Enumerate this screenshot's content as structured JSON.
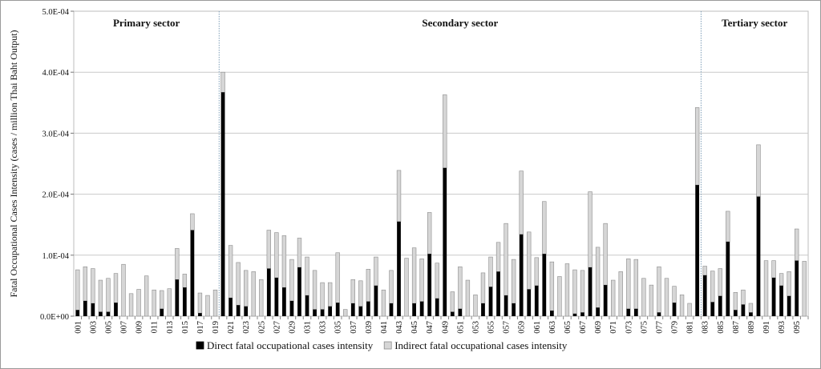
{
  "chart_data": {
    "type": "bar",
    "stacked": true,
    "ylabel": "Fatal Occupational Cases Intensity (cases / million Thai Baht Output)",
    "ylim": [
      0,
      0.0005
    ],
    "yticks": [
      "0.0E+00",
      "1.0E-04",
      "2.0E-04",
      "3.0E-04",
      "4.0E-04",
      "5.0E-04"
    ],
    "ytick_values": [
      0,
      0.0001,
      0.0002,
      0.0003,
      0.0004,
      0.0005
    ],
    "legend_position": "bottom",
    "grid": "horizontal",
    "sectors": [
      {
        "label": "Primary sector",
        "start": 1,
        "end": 19
      },
      {
        "label": "Secondary sector",
        "start": 20,
        "end": 82
      },
      {
        "label": "Tertiary sector",
        "start": 83,
        "end": 96
      }
    ],
    "series": [
      {
        "name": "Direct fatal occupational cases intensity",
        "color": "#000000",
        "values": [
          1e-05,
          2.5e-05,
          2.1e-05,
          7e-06,
          7e-06,
          2.2e-05,
          0,
          0,
          0,
          0,
          0,
          1.2e-05,
          0,
          6e-05,
          4.7e-05,
          0.000141,
          5e-06,
          0,
          0,
          0.000367,
          3e-05,
          1.8e-05,
          1.6e-05,
          0,
          0,
          7.8e-05,
          6.3e-05,
          4.7e-05,
          2.5e-05,
          8e-05,
          3.4e-05,
          1.1e-05,
          1.1e-05,
          1.6e-05,
          2.2e-05,
          0,
          2.1e-05,
          1.6e-05,
          2.4e-05,
          5e-05,
          0,
          2.1e-05,
          0.000155,
          0,
          2.1e-05,
          2.4e-05,
          0.000102,
          2.9e-05,
          0.000243,
          7e-06,
          1.2e-05,
          0,
          0,
          2.1e-05,
          4.8e-05,
          7.3e-05,
          3.4e-05,
          2.1e-05,
          0.000134,
          4.4e-05,
          5e-05,
          0.000102,
          9e-06,
          0,
          0,
          4e-06,
          6e-06,
          8e-05,
          1.4e-05,
          5.1e-05,
          0,
          0,
          1.2e-05,
          1.2e-05,
          0,
          0,
          6e-06,
          0,
          2.2e-05,
          0,
          0,
          0.000215,
          6.7e-05,
          2.3e-05,
          3.3e-05,
          0.000122,
          1e-05,
          1.9e-05,
          6e-06,
          0.000196,
          0,
          6.3e-05,
          5e-05,
          3.3e-05,
          9.1e-05,
          0
        ]
      },
      {
        "name": "Indirect fatal occupational cases intensity",
        "color": "#d6d6d6",
        "values": [
          6.6e-05,
          5.6e-05,
          5.7e-05,
          5.2e-05,
          5.5e-05,
          4.8e-05,
          8.5e-05,
          3.7e-05,
          4.4e-05,
          6.6e-05,
          4.3e-05,
          3e-05,
          4.5e-05,
          5.1e-05,
          2.2e-05,
          2.7e-05,
          3.3e-05,
          3.4e-05,
          4.3e-05,
          3.3e-05,
          8.6e-05,
          7e-05,
          5.9e-05,
          7.3e-05,
          6e-05,
          6.3e-05,
          7.4e-05,
          8.5e-05,
          6.8e-05,
          4.8e-05,
          6.3e-05,
          6.4e-05,
          4.4e-05,
          3.9e-05,
          8.2e-05,
          1.1e-05,
          3.9e-05,
          4.2e-05,
          5.3e-05,
          4.7e-05,
          4.3e-05,
          5.4e-05,
          8.4e-05,
          9.5e-05,
          9.1e-05,
          7e-05,
          6.8e-05,
          5.8e-05,
          0.00012,
          3.3e-05,
          6.9e-05,
          5.9e-05,
          3.5e-05,
          5e-05,
          4.9e-05,
          4.8e-05,
          0.000118,
          7.2e-05,
          0.000104,
          9.4e-05,
          4.6e-05,
          8.6e-05,
          8e-05,
          6.5e-05,
          8.6e-05,
          7.2e-05,
          6.9e-05,
          0.000124,
          9.9e-05,
          0.000101,
          5.9e-05,
          7.3e-05,
          8.2e-05,
          8.1e-05,
          6.2e-05,
          5.1e-05,
          7.5e-05,
          6.2e-05,
          2.7e-05,
          3.5e-05,
          2.1e-05,
          0.000127,
          1.5e-05,
          5.1e-05,
          4.5e-05,
          5e-05,
          2.9e-05,
          2.4e-05,
          1.5e-05,
          8.5e-05,
          9.1e-05,
          2.8e-05,
          2e-05,
          4e-05,
          5.2e-05,
          9e-05
        ]
      }
    ]
  }
}
